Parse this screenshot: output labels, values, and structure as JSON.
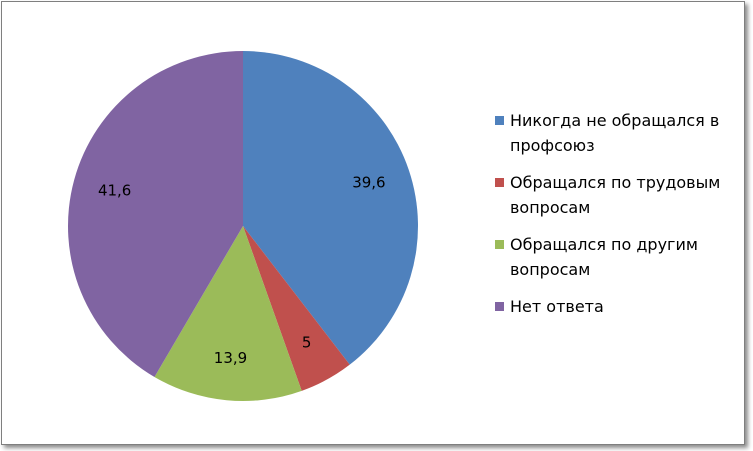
{
  "chart_data": {
    "type": "pie",
    "categories": [
      "Никогда не обращался в профсоюз",
      "Обращался по трудовым вопросам",
      "Обращался по другим вопросам",
      "Нет ответа"
    ],
    "values": [
      39.6,
      5,
      13.9,
      41.6
    ],
    "value_labels": [
      "39,6",
      "5",
      "13,9",
      "41,6"
    ],
    "colors": [
      "#4f81bd",
      "#c0504d",
      "#9bbb59",
      "#8064a2"
    ],
    "legend": "right"
  }
}
